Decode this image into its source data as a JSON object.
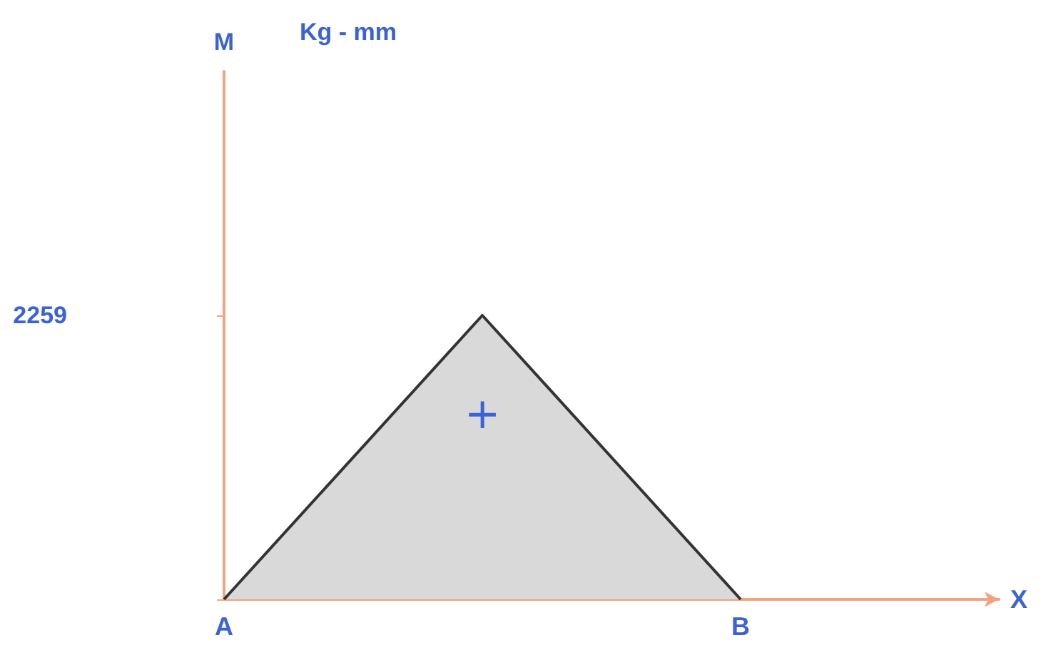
{
  "chart_data": {
    "type": "area",
    "ylabel": "M",
    "xlabel": "X",
    "categories": [
      "A",
      null,
      "B",
      null
    ],
    "series": [
      {
        "color": "#d9d9d9",
        "values": [
          0,
          2259,
          0,
          null
        ]
      }
    ],
    "ylim": [
      0,
      4200
    ],
    "yticks": [
      {
        "value": 0,
        "label": null
      },
      2259
    ],
    "annotations": [
      "Kg - mm",
      "+"
    ],
    "grid": false,
    "marker": "none",
    "line_style": "solid"
  }
}
